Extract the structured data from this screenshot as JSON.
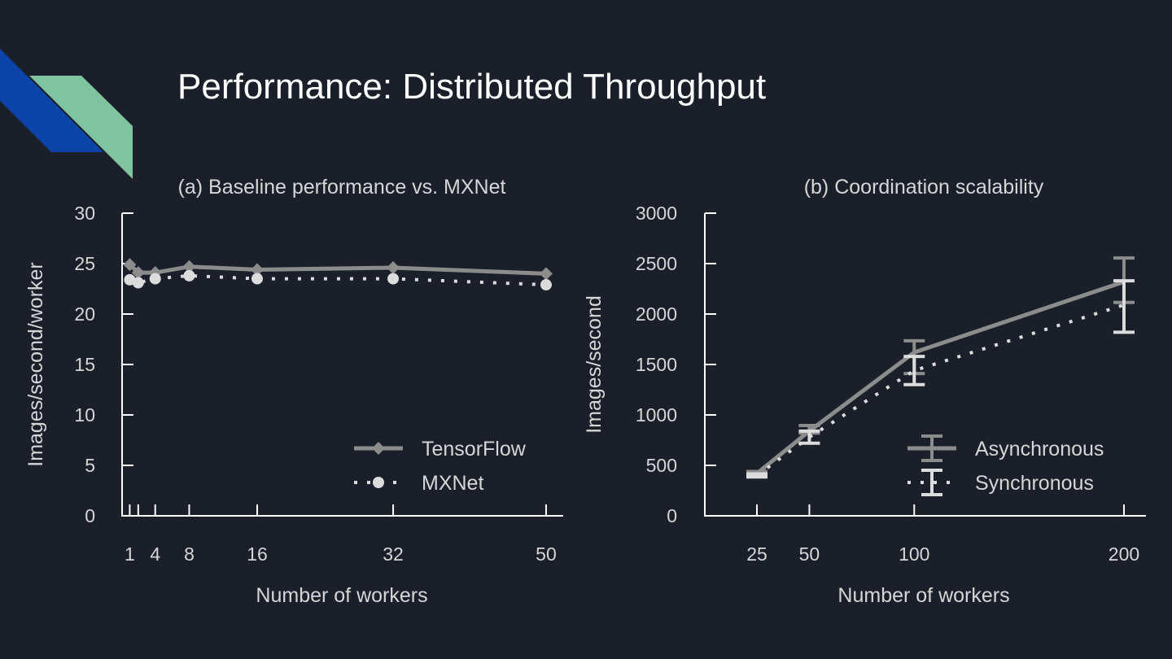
{
  "slide": {
    "title": "Performance: Distributed Throughput",
    "colors": {
      "background": "#1b1f2a",
      "accent_blue": "#0b44a8",
      "accent_green": "#7fc4a0",
      "series_dark": "#8c8c8c",
      "series_light": "#dcdcdc"
    }
  },
  "chart_data": [
    {
      "type": "line",
      "title": "(a) Baseline performance vs. MXNet",
      "xlabel": "Number of workers",
      "ylabel": "Images/second/worker",
      "x": [
        1,
        2,
        4,
        8,
        16,
        32,
        50
      ],
      "xticks": [
        1,
        4,
        8,
        16,
        32,
        50
      ],
      "ylim": [
        0,
        30
      ],
      "yticks": [
        0,
        5,
        10,
        15,
        20,
        25,
        30
      ],
      "legend": "bottom-right",
      "grid": false,
      "series": [
        {
          "name": "TensorFlow",
          "style": "solid-diamond",
          "values": [
            24.9,
            24.1,
            24.1,
            24.7,
            24.4,
            24.6,
            24.0
          ]
        },
        {
          "name": "MXNet",
          "style": "dotted-circle",
          "values": [
            23.4,
            23.1,
            23.5,
            23.8,
            23.5,
            23.5,
            22.9
          ]
        }
      ]
    },
    {
      "type": "line",
      "title": "(b) Coordination scalability",
      "xlabel": "Number of workers",
      "ylabel": "Images/second",
      "x": [
        25,
        50,
        100,
        200
      ],
      "xticks": [
        25,
        50,
        100,
        200
      ],
      "ylim": [
        0,
        3000
      ],
      "yticks": [
        0,
        500,
        1000,
        1500,
        2000,
        2500,
        3000
      ],
      "legend": "bottom-right",
      "grid": false,
      "series": [
        {
          "name": "Asynchronous",
          "style": "solid-errorbar",
          "values": [
            420,
            840,
            1620,
            2320
          ],
          "err_low": [
            400,
            820,
            1410,
            2115
          ],
          "err_high": [
            440,
            895,
            1735,
            2555
          ]
        },
        {
          "name": "Synchronous",
          "style": "dotted-errorbar",
          "values": [
            400,
            780,
            1440,
            2090
          ],
          "err_low": [
            385,
            720,
            1300,
            1820
          ],
          "err_high": [
            415,
            840,
            1580,
            2330
          ]
        }
      ]
    }
  ]
}
